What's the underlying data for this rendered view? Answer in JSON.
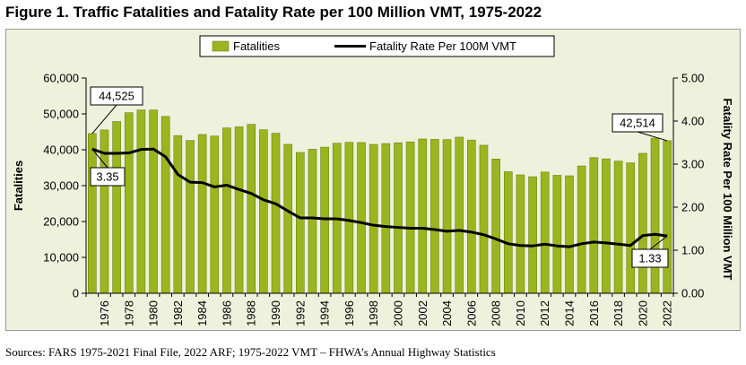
{
  "title": "Figure 1. Traffic Fatalities and Fatality Rate per 100 Million VMT, 1975-2022",
  "source": "Sources: FARS 1975-2021 Final File, 2022 ARF; 1975-2022 VMT – FHWA’s Annual Highway Statistics",
  "colors": {
    "bar_fill": "#9bb51e",
    "bar_stroke": "#6e8212",
    "line": "#000000",
    "background": "#eef1dc"
  },
  "chart_data": {
    "type": "bar",
    "x": [
      1975,
      1976,
      1977,
      1978,
      1979,
      1980,
      1981,
      1982,
      1983,
      1984,
      1985,
      1986,
      1987,
      1988,
      1989,
      1990,
      1991,
      1992,
      1993,
      1994,
      1995,
      1996,
      1997,
      1998,
      1999,
      2000,
      2001,
      2002,
      2003,
      2004,
      2005,
      2006,
      2007,
      2008,
      2009,
      2010,
      2011,
      2012,
      2013,
      2014,
      2015,
      2016,
      2017,
      2018,
      2019,
      2020,
      2021,
      2022
    ],
    "x_tick_labels": [
      "1976",
      "1978",
      "1980",
      "1982",
      "1984",
      "1986",
      "1988",
      "1990",
      "1992",
      "1994",
      "1996",
      "1998",
      "2000",
      "2002",
      "2004",
      "2006",
      "2008",
      "2010",
      "2012",
      "2014",
      "2016",
      "2018",
      "2020",
      "2022"
    ],
    "x_tick_values": [
      1976,
      1978,
      1980,
      1982,
      1984,
      1986,
      1988,
      1990,
      1992,
      1994,
      1996,
      1998,
      2000,
      2002,
      2004,
      2006,
      2008,
      2010,
      2012,
      2014,
      2016,
      2018,
      2020,
      2022
    ],
    "series": [
      {
        "name": "Fatalities",
        "type": "bar",
        "axis": "left",
        "values": [
          44525,
          45523,
          47878,
          50331,
          51093,
          51091,
          49301,
          43945,
          42589,
          44257,
          43825,
          46087,
          46390,
          47087,
          45582,
          44599,
          41508,
          39250,
          40150,
          40716,
          41817,
          42065,
          42013,
          41501,
          41717,
          41945,
          42196,
          43005,
          42884,
          42836,
          43510,
          42708,
          41259,
          37423,
          33883,
          32999,
          32479,
          33782,
          32893,
          32744,
          35484,
          37806,
          37473,
          36835,
          36355,
          39007,
          43230,
          42514
        ]
      },
      {
        "name": "Fatality Rate Per 100M VMT",
        "type": "line",
        "axis": "right",
        "values": [
          3.35,
          3.25,
          3.25,
          3.26,
          3.34,
          3.35,
          3.17,
          2.76,
          2.58,
          2.57,
          2.47,
          2.51,
          2.41,
          2.32,
          2.17,
          2.08,
          1.91,
          1.75,
          1.75,
          1.73,
          1.73,
          1.69,
          1.64,
          1.58,
          1.55,
          1.53,
          1.51,
          1.51,
          1.48,
          1.44,
          1.46,
          1.42,
          1.36,
          1.26,
          1.15,
          1.11,
          1.1,
          1.14,
          1.1,
          1.08,
          1.15,
          1.19,
          1.17,
          1.14,
          1.11,
          1.34,
          1.37,
          1.33
        ]
      }
    ],
    "y_left": {
      "label": "Fatalities",
      "range": [
        0,
        60000
      ],
      "ticks": [
        0,
        10000,
        20000,
        30000,
        40000,
        50000,
        60000
      ],
      "tick_labels": [
        "0",
        "10,000",
        "20,000",
        "30,000",
        "40,000",
        "50,000",
        "60,000"
      ]
    },
    "y_right": {
      "label": "Fatality Rate Per 100 Million VMT",
      "range": [
        0,
        5
      ],
      "ticks": [
        0,
        1,
        2,
        3,
        4,
        5
      ],
      "tick_labels": [
        "0.00",
        "1.00",
        "2.00",
        "3.00",
        "4.00",
        "5.00"
      ]
    },
    "legend": {
      "position": "top-center",
      "bar_label": "Fatalities",
      "line_label": "Fatality Rate Per 100M VMT"
    },
    "annotations": [
      {
        "text": "44,525",
        "year": 1975,
        "series": "Fatalities"
      },
      {
        "text": "3.35",
        "year": 1975,
        "series": "Fatality Rate Per 100M VMT"
      },
      {
        "text": "42,514",
        "year": 2022,
        "series": "Fatalities"
      },
      {
        "text": "1.33",
        "year": 2022,
        "series": "Fatality Rate Per 100M VMT"
      }
    ],
    "grid": false
  }
}
